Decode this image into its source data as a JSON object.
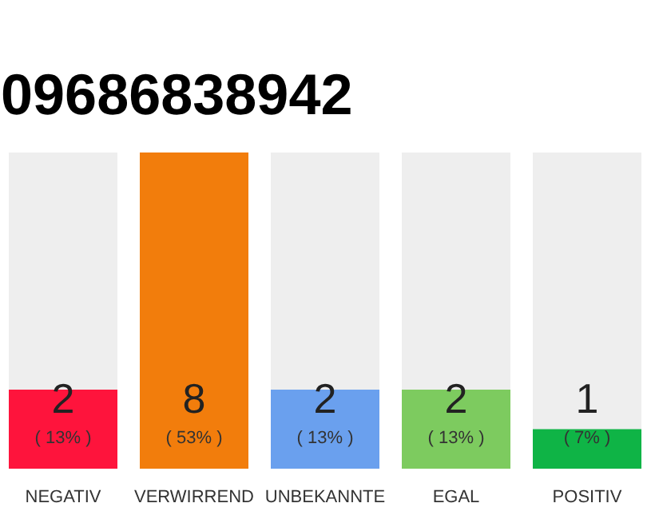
{
  "chart_data": {
    "type": "bar",
    "title": "09686838942",
    "categories": [
      "NEGATIV",
      "VERWIRREND",
      "UNBEKANNTE",
      "EGAL",
      "POSITIV"
    ],
    "values": [
      2,
      8,
      2,
      2,
      1
    ],
    "colors": [
      "#fe143c",
      "#f27d0c",
      "#6aa0ee",
      "#7dcb5f",
      "#0fb446"
    ],
    "data_labels": true,
    "annotations": [
      "( 13% )",
      "( 53% )",
      "( 13% )",
      "( 13% )",
      "( 7% )"
    ]
  }
}
